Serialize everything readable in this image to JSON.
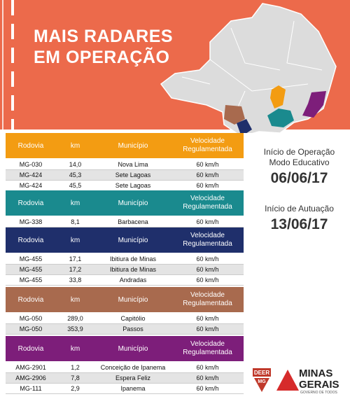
{
  "header": {
    "title_lines": [
      "MAIS RADARES",
      "EM OPERAÇÃO"
    ]
  },
  "table": {
    "columns": [
      "Rodovia",
      "km",
      "Município",
      "Velocidade Regulamentada"
    ],
    "groups": [
      {
        "color": "#f39c12",
        "rows": [
          [
            "MG-030",
            "14,0",
            "Nova Lima",
            "60 km/h"
          ],
          [
            "MG-424",
            "45,3",
            "Sete Lagoas",
            "60 km/h"
          ],
          [
            "MG-424",
            "45,5",
            "Sete Lagoas",
            "60 km/h"
          ]
        ]
      },
      {
        "color": "#1a8a8e",
        "rows": [
          [
            "MG-338",
            "8,1",
            "Barbacena",
            "60 km/h"
          ]
        ]
      },
      {
        "color": "#1f2f6b",
        "rows": [
          [
            "MG-455",
            "17,1",
            "Ibitiura de Minas",
            "60 km/h"
          ],
          [
            "MG-455",
            "17,2",
            "Ibitiura de Minas",
            "60 km/h"
          ],
          [
            "MG-455",
            "33,8",
            "Andradas",
            "60 km/h"
          ]
        ]
      },
      {
        "color": "#a86a4e",
        "rows": [
          [
            "MG-050",
            "289,0",
            "Capitólio",
            "60 km/h"
          ],
          [
            "MG-050",
            "353,9",
            "Passos",
            "60 km/h"
          ]
        ]
      },
      {
        "color": "#7d1e7a",
        "rows": [
          [
            "AMG-2901",
            "1,2",
            "Conceição de Ipanema",
            "60 km/h"
          ],
          [
            "AMG-2906",
            "7,8",
            "Espera Feliz",
            "60 km/h"
          ],
          [
            "MG-111",
            "2,9",
            "Ipanema",
            "60 km/h"
          ]
        ]
      }
    ]
  },
  "side": {
    "operation_label": "Início de Operação",
    "operation_mode": "Modo Educativo",
    "operation_date": "06/06/17",
    "enforcement_label": "Início de Autuação",
    "enforcement_date": "13/06/17"
  },
  "logos": {
    "deer": "DEER",
    "deer_sub": "MG",
    "state": "MINAS",
    "state2": "GERAIS",
    "slogan": "GOVERNO DE TODOS"
  }
}
